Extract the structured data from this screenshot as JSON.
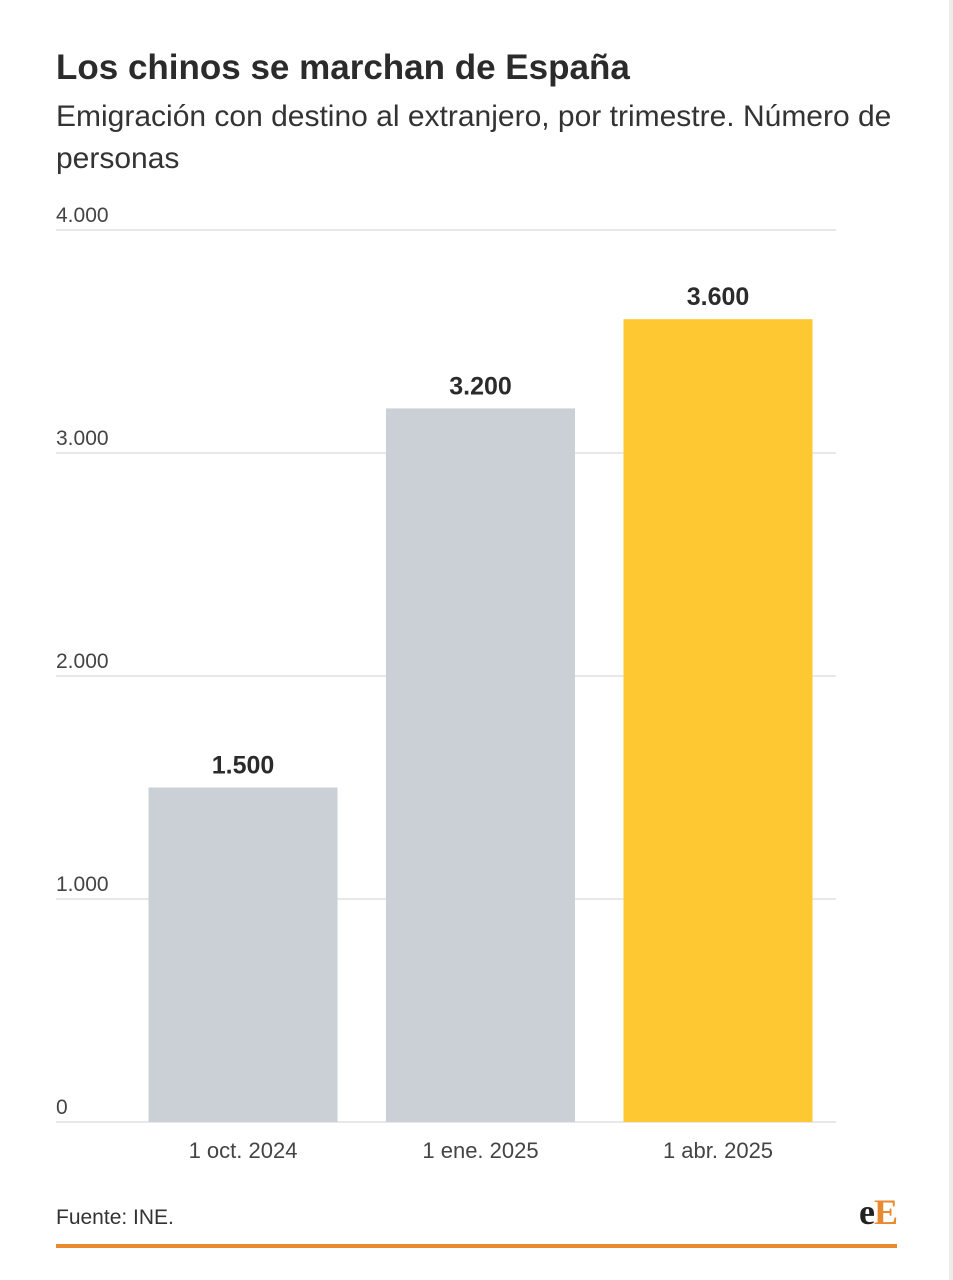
{
  "header": {
    "title": "Los chinos se marchan de España",
    "subtitle": "Emigración con destino al extranjero, por trimestre. Número de personas"
  },
  "footer": {
    "source": "Fuente: INE.",
    "logo_text": "eE"
  },
  "colors": {
    "bar_default": "#cbd0d7",
    "bar_highlight": "#fec832",
    "grid": "#e8e8e8",
    "accent": "#e98a2e"
  },
  "chart_data": {
    "type": "bar",
    "categories": [
      "1 oct. 2024",
      "1 ene. 2025",
      "1 abr. 2025"
    ],
    "values": [
      1500,
      3200,
      3600
    ],
    "value_labels": [
      "1.500",
      "3.200",
      "3.600"
    ],
    "highlight_index": 2,
    "ylim": [
      0,
      4000
    ],
    "yticks": [
      0,
      1000,
      2000,
      3000,
      4000
    ],
    "ytick_labels": [
      "0",
      "1.000",
      "2.000",
      "3.000",
      "4.000"
    ],
    "grid": true,
    "xlabel": "",
    "ylabel": ""
  }
}
